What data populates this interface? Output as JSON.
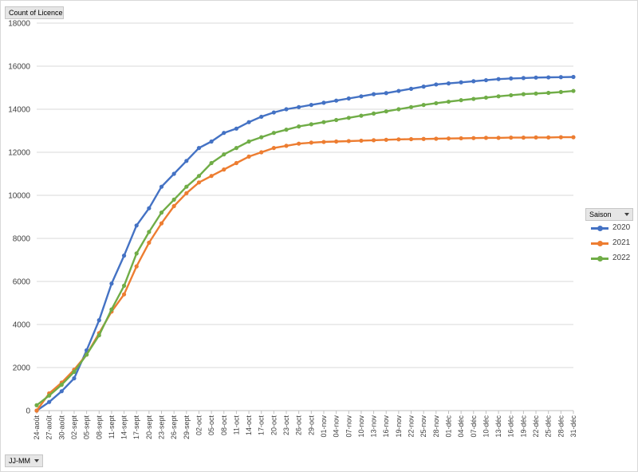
{
  "controls": {
    "value_field": "Count of Licence",
    "legend_field": "Saison",
    "axis_field": "JJ-MM"
  },
  "chart_data": {
    "type": "line",
    "title": "",
    "xlabel": "",
    "ylabel": "",
    "ylim": [
      0,
      18000
    ],
    "yticks": [
      0,
      2000,
      4000,
      6000,
      8000,
      10000,
      12000,
      14000,
      16000,
      18000
    ],
    "xrange": [
      "24-août",
      "31-déc"
    ],
    "xticks": [
      "24-août",
      "27-août",
      "30-août",
      "02-sept",
      "05-sept",
      "08-sept",
      "11-sept",
      "14-sept",
      "17-sept",
      "20-sept",
      "23-sept",
      "26-sept",
      "29-sept",
      "02-oct",
      "05-oct",
      "08-oct",
      "11-oct",
      "14-oct",
      "17-oct",
      "20-oct",
      "23-oct",
      "26-oct",
      "29-oct",
      "01-nov",
      "04-nov",
      "07-nov",
      "10-nov",
      "13-nov",
      "16-nov",
      "19-nov",
      "22-nov",
      "25-nov",
      "28-nov",
      "01-déc",
      "04-déc",
      "07-déc",
      "10-déc",
      "13-déc",
      "16-déc",
      "19-déc",
      "22-déc",
      "25-déc",
      "28-déc",
      "31-déc"
    ],
    "grid": true,
    "legend_position": "right",
    "x": [
      "24-août",
      "27-août",
      "30-août",
      "02-sept",
      "05-sept",
      "08-sept",
      "11-sept",
      "14-sept",
      "17-sept",
      "20-sept",
      "23-sept",
      "26-sept",
      "29-sept",
      "02-oct",
      "05-oct",
      "08-oct",
      "11-oct",
      "14-oct",
      "17-oct",
      "20-oct",
      "23-oct",
      "26-oct",
      "29-oct",
      "01-nov",
      "04-nov",
      "07-nov",
      "10-nov",
      "13-nov",
      "16-nov",
      "19-nov",
      "22-nov",
      "25-nov",
      "28-nov",
      "01-déc",
      "04-déc",
      "07-déc",
      "10-déc",
      "13-déc",
      "16-déc",
      "19-déc",
      "22-déc",
      "25-déc",
      "28-déc",
      "31-déc"
    ],
    "series": [
      {
        "name": "2020",
        "color": "#4472c4",
        "values": [
          0,
          400,
          900,
          1500,
          2800,
          4200,
          5900,
          7200,
          8600,
          9400,
          10400,
          11000,
          11600,
          12200,
          12500,
          12900,
          13100,
          13400,
          13650,
          13850,
          14000,
          14100,
          14200,
          14300,
          14400,
          14500,
          14600,
          14700,
          14750,
          14850,
          14950,
          15050,
          15150,
          15200,
          15250,
          15300,
          15350,
          15400,
          15430,
          15450,
          15470,
          15480,
          15490,
          15500
        ]
      },
      {
        "name": "2021",
        "color": "#ed7d31",
        "values": [
          0,
          800,
          1300,
          1900,
          2600,
          3600,
          4600,
          5400,
          6700,
          7800,
          8700,
          9500,
          10100,
          10600,
          10900,
          11200,
          11500,
          11800,
          12000,
          12200,
          12300,
          12400,
          12450,
          12480,
          12500,
          12520,
          12540,
          12560,
          12580,
          12600,
          12610,
          12620,
          12630,
          12640,
          12650,
          12660,
          12670,
          12670,
          12680,
          12680,
          12690,
          12690,
          12700,
          12700
        ]
      },
      {
        "name": "2022",
        "color": "#70ad47",
        "values": [
          250,
          700,
          1200,
          1800,
          2600,
          3500,
          4700,
          5800,
          7300,
          8300,
          9200,
          9800,
          10400,
          10900,
          11500,
          11900,
          12200,
          12500,
          12700,
          12900,
          13050,
          13200,
          13300,
          13400,
          13500,
          13600,
          13700,
          13800,
          13900,
          14000,
          14100,
          14200,
          14280,
          14350,
          14420,
          14480,
          14540,
          14600,
          14650,
          14700,
          14730,
          14760,
          14800,
          14850
        ]
      }
    ]
  }
}
